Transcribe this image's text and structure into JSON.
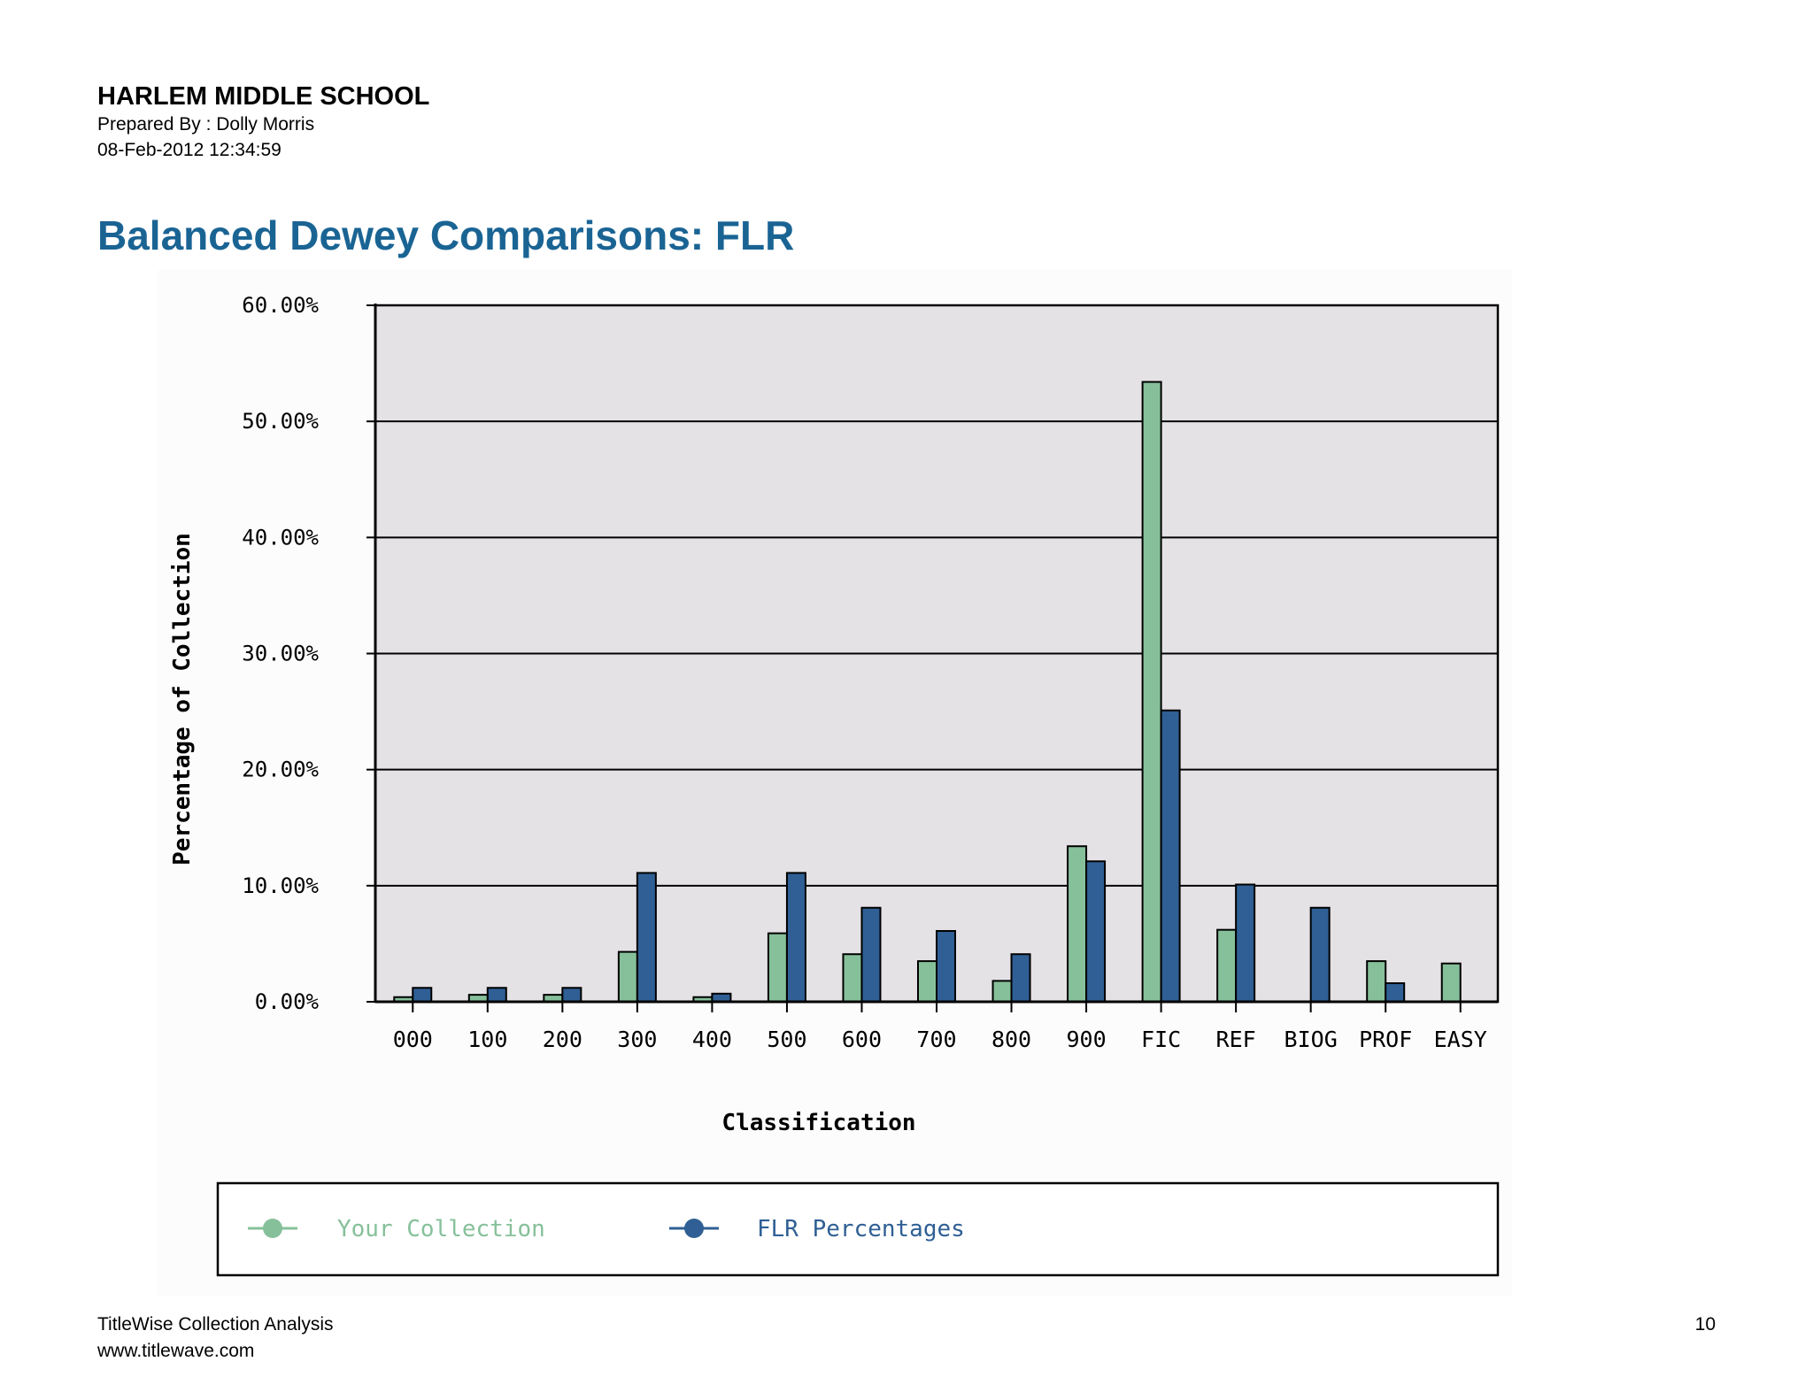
{
  "header": {
    "school": "HARLEM MIDDLE SCHOOL",
    "prepared_by": "Prepared By : Dolly Morris",
    "datetime": "08-Feb-2012 12:34:59"
  },
  "title": "Balanced Dewey Comparisons: FLR",
  "colors": {
    "title": "#1a6494",
    "your_collection": "#86c09a",
    "flr": "#2f5f94",
    "plot_bg": "#e4e2e5"
  },
  "chart_data": {
    "type": "bar",
    "categories": [
      "000",
      "100",
      "200",
      "300",
      "400",
      "500",
      "600",
      "700",
      "800",
      "900",
      "FIC",
      "REF",
      "BIOG",
      "PROF",
      "EASY"
    ],
    "series": [
      {
        "name": "Your Collection",
        "values": [
          0.4,
          0.6,
          0.6,
          4.3,
          0.4,
          5.9,
          4.1,
          3.5,
          1.8,
          13.4,
          53.4,
          6.2,
          0.0,
          3.5,
          3.3
        ]
      },
      {
        "name": "FLR Percentages",
        "values": [
          1.2,
          1.2,
          1.2,
          11.1,
          0.7,
          11.1,
          8.1,
          6.1,
          4.1,
          12.1,
          25.1,
          10.1,
          8.1,
          1.6,
          0.0
        ]
      }
    ],
    "xlabel": "Classification",
    "ylabel": "Percentage of Collection",
    "ylim": [
      0,
      60
    ],
    "yticks": [
      0,
      10,
      20,
      30,
      40,
      50,
      60
    ],
    "ytick_labels": [
      "0.00%",
      "10.00%",
      "20.00%",
      "30.00%",
      "40.00%",
      "50.00%",
      "60.00%"
    ],
    "grid": true,
    "legend_position": "bottom"
  },
  "footer": {
    "line1": "TitleWise Collection Analysis",
    "line2": "www.titlewave.com",
    "page": "10"
  }
}
